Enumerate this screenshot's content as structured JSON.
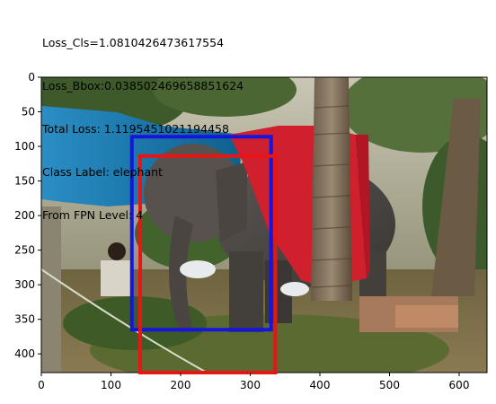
{
  "title_lines": [
    "Loss_Cls=1.0810426473617554",
    "Loss_Bbox:0.038502469658851624",
    "Total Loss: 1.1195451021194458",
    "Class Label: elephant",
    "From FPN Level: 4"
  ],
  "chart_data": {
    "type": "image",
    "x_ticks": [
      "0",
      "100",
      "200",
      "300",
      "400",
      "500",
      "600"
    ],
    "y_ticks": [
      "0",
      "50",
      "100",
      "150",
      "200",
      "250",
      "300",
      "350",
      "400"
    ],
    "xlim": [
      0,
      640
    ],
    "ylim": [
      427,
      0
    ],
    "boxes": [
      {
        "color": "#1515e0",
        "x1": 130,
        "y1": 86,
        "x2": 330,
        "y2": 365
      },
      {
        "color": "#e81515",
        "x1": 142,
        "y1": 114,
        "x2": 336,
        "y2": 427
      }
    ]
  }
}
